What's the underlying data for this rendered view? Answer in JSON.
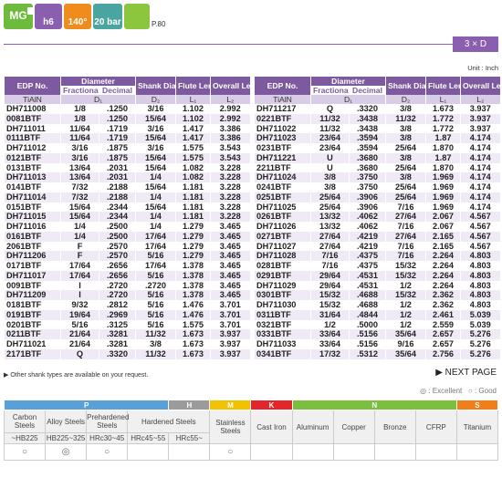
{
  "header": {
    "badges": [
      "MG",
      "h6",
      "140°",
      "20 bar"
    ],
    "page_ref": "P.80",
    "ratio": "3 × D",
    "unit": "Unit : Inch"
  },
  "table": {
    "columns": {
      "edp": "EDP No.",
      "diameter": "Diameter",
      "fractional": "Fractional",
      "decimal": "Decimal",
      "shank": "Shank Diameter",
      "flute": "Flute Length",
      "overall": "Overall Length",
      "coating": "TiAlN",
      "d1": "D₁",
      "d2": "D₂",
      "l1": "L₁",
      "l2": "L₂"
    },
    "left_rows": [
      [
        "DH711008",
        "1/8",
        ".1250",
        "3/16",
        "1.102",
        "2.992"
      ],
      [
        "0081BTF",
        "1/8",
        ".1250",
        "15/64",
        "1.102",
        "2.992"
      ],
      [
        "DH711011",
        "11/64",
        ".1719",
        "3/16",
        "1.417",
        "3.386"
      ],
      [
        "0111BTF",
        "11/64",
        ".1719",
        "15/64",
        "1.417",
        "3.386"
      ],
      [
        "DH711012",
        "3/16",
        ".1875",
        "3/16",
        "1.575",
        "3.543"
      ],
      [
        "0121BTF",
        "3/16",
        ".1875",
        "15/64",
        "1.575",
        "3.543"
      ],
      [
        "0131BTF",
        "13/64",
        ".2031",
        "15/64",
        "1.082",
        "3.228"
      ],
      [
        "DH711013",
        "13/64",
        ".2031",
        "1/4",
        "1.082",
        "3.228"
      ],
      [
        "0141BTF",
        "7/32",
        ".2188",
        "15/64",
        "1.181",
        "3.228"
      ],
      [
        "DH711014",
        "7/32",
        ".2188",
        "1/4",
        "1.181",
        "3.228"
      ],
      [
        "0151BTF",
        "15/64",
        ".2344",
        "15/64",
        "1.181",
        "3.228"
      ],
      [
        "DH711015",
        "15/64",
        ".2344",
        "1/4",
        "1.181",
        "3.228"
      ],
      [
        "DH711016",
        "1/4",
        ".2500",
        "1/4",
        "1.279",
        "3.465"
      ],
      [
        "0161BTF",
        "1/4",
        ".2500",
        "17/64",
        "1.279",
        "3.465"
      ],
      [
        "2061BTF",
        "F",
        ".2570",
        "17/64",
        "1.279",
        "3.465"
      ],
      [
        "DH711206",
        "F",
        ".2570",
        "5/16",
        "1.279",
        "3.465"
      ],
      [
        "0171BTF",
        "17/64",
        ".2656",
        "17/64",
        "1.378",
        "3.465"
      ],
      [
        "DH711017",
        "17/64",
        ".2656",
        "5/16",
        "1.378",
        "3.465"
      ],
      [
        "0091BTF",
        "I",
        ".2720",
        ".2720",
        "1.378",
        "3.465"
      ],
      [
        "DH711209",
        "I",
        ".2720",
        "5/16",
        "1.378",
        "3.465"
      ],
      [
        "0181BTF",
        "9/32",
        ".2812",
        "5/16",
        "1.476",
        "3.701"
      ],
      [
        "0191BTF",
        "19/64",
        ".2969",
        "5/16",
        "1.476",
        "3.701"
      ],
      [
        "0201BTF",
        "5/16",
        ".3125",
        "5/16",
        "1.575",
        "3.701"
      ],
      [
        "0211BTF",
        "21/64",
        ".3281",
        "11/32",
        "1.673",
        "3.937"
      ],
      [
        "DH711021",
        "21/64",
        ".3281",
        "3/8",
        "1.673",
        "3.937"
      ],
      [
        "2171BTF",
        "Q",
        ".3320",
        "11/32",
        "1.673",
        "3.937"
      ]
    ],
    "right_rows": [
      [
        "DH711217",
        "Q",
        ".3320",
        "3/8",
        "1.673",
        "3.937"
      ],
      [
        "0221BTF",
        "11/32",
        ".3438",
        "11/32",
        "1.772",
        "3.937"
      ],
      [
        "DH711022",
        "11/32",
        ".3438",
        "3/8",
        "1.772",
        "3.937"
      ],
      [
        "DH711023",
        "23/64",
        ".3594",
        "3/8",
        "1.87",
        "4.174"
      ],
      [
        "0231BTF",
        "23/64",
        ".3594",
        "25/64",
        "1.870",
        "4.174"
      ],
      [
        "DH711221",
        "U",
        ".3680",
        "3/8",
        "1.87",
        "4.174"
      ],
      [
        "2211BTF",
        "U",
        ".3680",
        "25/64",
        "1.870",
        "4.174"
      ],
      [
        "DH711024",
        "3/8",
        ".3750",
        "3/8",
        "1.969",
        "4.174"
      ],
      [
        "0241BTF",
        "3/8",
        ".3750",
        "25/64",
        "1.969",
        "4.174"
      ],
      [
        "0251BTF",
        "25/64",
        ".3906",
        "25/64",
        "1.969",
        "4.174"
      ],
      [
        "DH711025",
        "25/64",
        ".3906",
        "7/16",
        "1.969",
        "4.174"
      ],
      [
        "0261BTF",
        "13/32",
        ".4062",
        "27/64",
        "2.067",
        "4.567"
      ],
      [
        "DH711026",
        "13/32",
        ".4062",
        "7/16",
        "2.067",
        "4.567"
      ],
      [
        "0271BTF",
        "27/64",
        ".4219",
        "27/64",
        "2.165",
        "4.567"
      ],
      [
        "DH711027",
        "27/64",
        ".4219",
        "7/16",
        "2.165",
        "4.567"
      ],
      [
        "DH711028",
        "7/16",
        ".4375",
        "7/16",
        "2.264",
        "4.803"
      ],
      [
        "0281BTF",
        "7/16",
        ".4375",
        "15/32",
        "2.264",
        "4.803"
      ],
      [
        "0291BTF",
        "29/64",
        ".4531",
        "15/32",
        "2.264",
        "4.803"
      ],
      [
        "DH711029",
        "29/64",
        ".4531",
        "1/2",
        "2.264",
        "4.803"
      ],
      [
        "0301BTF",
        "15/32",
        ".4688",
        "15/32",
        "2.362",
        "4.803"
      ],
      [
        "DH711030",
        "15/32",
        ".4688",
        "1/2",
        "2.362",
        "4.803"
      ],
      [
        "0311BTF",
        "31/64",
        ".4844",
        "1/2",
        "2.461",
        "5.039"
      ],
      [
        "0321BTF",
        "1/2",
        ".5000",
        "1/2",
        "2.559",
        "5.039"
      ],
      [
        "0331BTF",
        "33/64",
        ".5156",
        "35/64",
        "2.657",
        "5.276"
      ],
      [
        "DH711033",
        "33/64",
        ".5156",
        "9/16",
        "2.657",
        "5.276"
      ],
      [
        "0341BTF",
        "17/32",
        ".5312",
        "35/64",
        "2.756",
        "5.276"
      ]
    ]
  },
  "footer": {
    "note": "▶ Other shank types are available on your request.",
    "next": "▶ NEXT PAGE",
    "legend": [
      "◎ : Excellent",
      "○ : Good"
    ]
  },
  "materials": {
    "groups": [
      "P",
      "H",
      "M",
      "K",
      "N",
      "S"
    ],
    "names": [
      "Carbon Steels",
      "Alloy Steels",
      "Prehardened Steels",
      "Hardened Steels",
      "Stainless Steels",
      "Cast Iron",
      "Aluminum",
      "Copper",
      "Bronze",
      "CFRP",
      "Titanium"
    ],
    "hardness": [
      "~HB225",
      "HB225~325",
      "HRc30~45",
      "HRc45~55",
      "HRc55~"
    ],
    "ratings": [
      "○",
      "◎",
      "○",
      null,
      null,
      "○",
      null,
      null,
      null,
      null,
      null,
      null
    ]
  }
}
